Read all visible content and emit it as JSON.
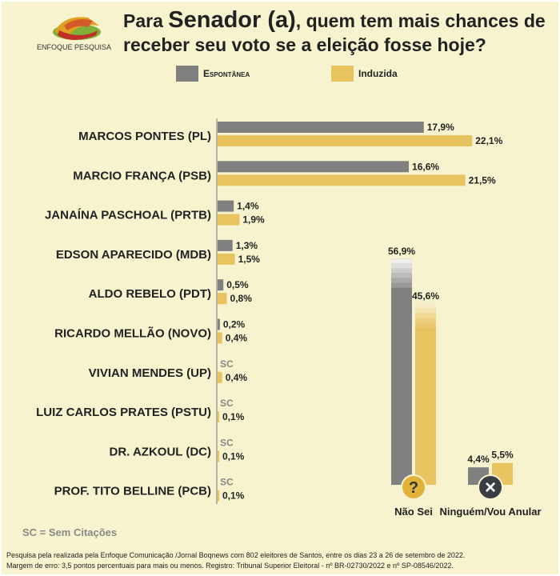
{
  "header": {
    "logo_text": "ENFOQUE PESQUISA",
    "title_prefix": "Para ",
    "title_highlight": "Senador (a)",
    "title_line1_suffix": ", quem tem mais chances de",
    "title_line2": "receber seu voto se a eleição fosse hoje?"
  },
  "legend": [
    {
      "label": "Espontânea",
      "color": "#808080"
    },
    {
      "label": "Induzida",
      "color": "#e8c35f"
    }
  ],
  "chart_data": [
    {
      "type": "bar",
      "orientation": "horizontal",
      "categories": [
        "MARCOS PONTES (PL)",
        "MARCIO FRANÇA (PSB)",
        "JANAÍNA PASCHOAL (PRTB)",
        "EDSON APARECIDO (MDB)",
        "ALDO REBELO (PDT)",
        "RICARDO MELLÃO (NOVO)",
        "VIVIAN MENDES (UP)",
        "LUIZ CARLOS PRATES (PSTU)",
        "DR. AZKOUL (DC)",
        "PROF. TITO BELLINE (PCB)"
      ],
      "series": [
        {
          "name": "Espontânea",
          "values": [
            17.9,
            16.6,
            1.4,
            1.3,
            0.5,
            0.2,
            null,
            null,
            null,
            null
          ],
          "labels": [
            "17,9%",
            "16,6%",
            "1,4%",
            "1,3%",
            "0,5%",
            "0,2%",
            "SC",
            "SC",
            "SC",
            "SC"
          ]
        },
        {
          "name": "Induzida",
          "values": [
            22.1,
            21.5,
            1.9,
            1.5,
            0.8,
            0.4,
            0.4,
            0.1,
            0.1,
            0.1
          ],
          "labels": [
            "22,1%",
            "21,5%",
            "1,9%",
            "1,5%",
            "0,8%",
            "0,4%",
            "0,4%",
            "0,1%",
            "0,1%",
            "0,1%"
          ]
        }
      ]
    },
    {
      "type": "bar",
      "orientation": "vertical",
      "categories": [
        "Não Sei",
        "Ninguém/Vou Anular"
      ],
      "series": [
        {
          "name": "Espontânea",
          "values": [
            56.9,
            4.4
          ],
          "labels": [
            "56,9%",
            "4,4%"
          ]
        },
        {
          "name": "Induzida",
          "values": [
            45.6,
            5.5
          ],
          "labels": [
            "45,6%",
            "5,5%"
          ]
        }
      ]
    }
  ],
  "icons": {
    "nao_sei": "?",
    "anular": "×"
  },
  "footer": {
    "sc_note": "SC = Sem Citações",
    "source_line1": "Pesquisa pela realizada pela Enfoque Comunicação /Jornal Boqnews com 802 eleitores de Santos, entre os dias 23 a 26 de setembro de 2022.",
    "source_line2": "Margem de erro: 3,5 pontos percentuais para mais ou menos. Registro: Tribunal Superior Eleitoral - nº BR-02730/2022 e nº SP-08546/2022."
  }
}
